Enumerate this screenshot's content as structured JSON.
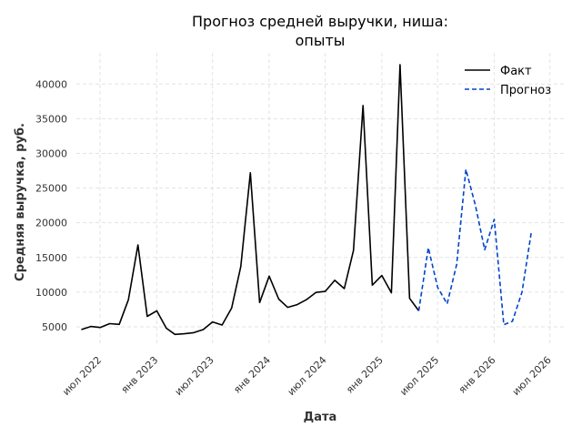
{
  "chart_data": {
    "type": "line",
    "title_line1": "Прогноз средней выручки, ниша:",
    "title_line2": "опыты",
    "xlabel": "Дата",
    "ylabel": "Средняя выручка, руб.",
    "ylim": [
      2500,
      44500
    ],
    "yticks": [
      5000,
      10000,
      15000,
      20000,
      25000,
      30000,
      35000,
      40000
    ],
    "xlim": [
      "2022-04-15",
      "2026-08-15"
    ],
    "xticks": [
      {
        "date": "2022-07-01",
        "label": "июл 2022"
      },
      {
        "date": "2023-01-01",
        "label": "янв 2023"
      },
      {
        "date": "2023-07-01",
        "label": "июл 2023"
      },
      {
        "date": "2024-01-01",
        "label": "янв 2024"
      },
      {
        "date": "2024-07-01",
        "label": "июл 2024"
      },
      {
        "date": "2025-01-01",
        "label": "янв 2025"
      },
      {
        "date": "2025-07-01",
        "label": "июл 2025"
      },
      {
        "date": "2026-01-01",
        "label": "янв 2026"
      },
      {
        "date": "2026-07-01",
        "label": "июл 2026"
      }
    ],
    "legend_position": "top-right",
    "grid": true,
    "series": [
      {
        "name": "Факт",
        "color": "#000000",
        "style": "solid",
        "points": [
          [
            "2022-05-01",
            4600
          ],
          [
            "2022-06-01",
            5050
          ],
          [
            "2022-07-01",
            4900
          ],
          [
            "2022-08-01",
            5450
          ],
          [
            "2022-09-01",
            5350
          ],
          [
            "2022-10-01",
            8900
          ],
          [
            "2022-11-01",
            16800
          ],
          [
            "2022-12-01",
            6500
          ],
          [
            "2023-01-01",
            7300
          ],
          [
            "2023-02-01",
            4800
          ],
          [
            "2023-03-01",
            3900
          ],
          [
            "2023-04-01",
            4000
          ],
          [
            "2023-05-01",
            4150
          ],
          [
            "2023-06-01",
            4600
          ],
          [
            "2023-07-01",
            5700
          ],
          [
            "2023-08-01",
            5250
          ],
          [
            "2023-09-01",
            7700
          ],
          [
            "2023-10-01",
            13700
          ],
          [
            "2023-11-01",
            27200
          ],
          [
            "2023-12-01",
            8500
          ],
          [
            "2024-01-01",
            12300
          ],
          [
            "2024-02-01",
            9000
          ],
          [
            "2024-03-01",
            7800
          ],
          [
            "2024-04-01",
            8200
          ],
          [
            "2024-05-01",
            8900
          ],
          [
            "2024-06-01",
            9950
          ],
          [
            "2024-07-01",
            10100
          ],
          [
            "2024-08-01",
            11700
          ],
          [
            "2024-09-01",
            10500
          ],
          [
            "2024-10-01",
            16000
          ],
          [
            "2024-11-01",
            36900
          ],
          [
            "2024-12-01",
            11000
          ],
          [
            "2025-01-01",
            12400
          ],
          [
            "2025-02-01",
            9900
          ],
          [
            "2025-03-01",
            42800
          ],
          [
            "2025-04-01",
            9100
          ],
          [
            "2025-05-01",
            7300
          ]
        ]
      },
      {
        "name": "Прогноз",
        "color": "#0044cc",
        "style": "dashed",
        "points": [
          [
            "2025-05-01",
            7300
          ],
          [
            "2025-06-01",
            16400
          ],
          [
            "2025-07-01",
            10700
          ],
          [
            "2025-08-01",
            8300
          ],
          [
            "2025-09-01",
            14000
          ],
          [
            "2025-10-01",
            27700
          ],
          [
            "2025-11-01",
            22500
          ],
          [
            "2025-12-01",
            16100
          ],
          [
            "2026-01-01",
            20500
          ],
          [
            "2026-02-01",
            5300
          ],
          [
            "2026-03-01",
            5800
          ],
          [
            "2026-04-01",
            10000
          ],
          [
            "2026-05-01",
            18500
          ]
        ]
      }
    ]
  }
}
